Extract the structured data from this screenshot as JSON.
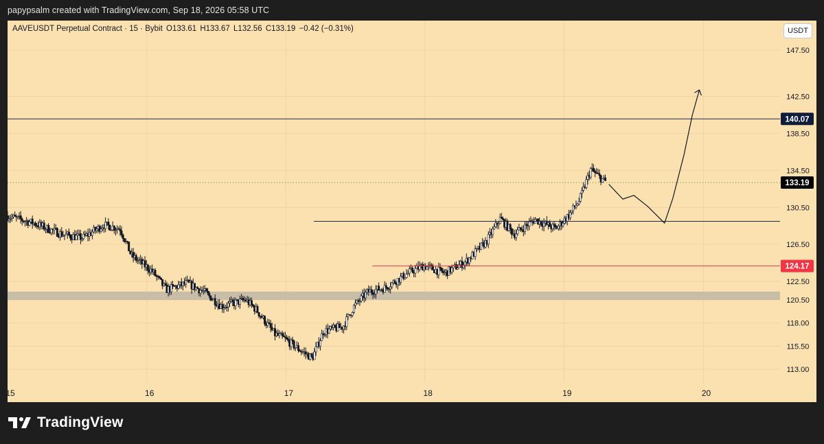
{
  "credit_text": "papypsalm created with TradingView.com, Sep 18, 2026 05:58 UTC",
  "legend": {
    "symbol": "AAVEUSDT Perpetual Contract · 15 · Bybit",
    "open": "O133.61",
    "high": "H133.67",
    "low": "L132.56",
    "close": "C133.19",
    "change": "−0.42 (−0.31%)"
  },
  "currency_unit": "USDT",
  "brand": "TradingView",
  "colors": {
    "background": "#fbe0b0",
    "candle": "#131722",
    "resistance": "#1c2a4a",
    "support_red": "#f23645",
    "zone": "#c8bea8"
  },
  "chart_data": {
    "type": "candlestick",
    "title": "",
    "xlabel": "",
    "ylabel": "",
    "ylim": [
      111.6,
      150.7
    ],
    "y_ticks": [
      113.0,
      115.5,
      118.0,
      120.5,
      122.5,
      126.5,
      130.5,
      134.5,
      138.5,
      142.5,
      147.5
    ],
    "y_tick_labels": [
      "113.00",
      "115.50",
      "118.00",
      "120.50",
      "122.50",
      "126.50",
      "130.50",
      "134.50",
      "138.50",
      "142.50",
      "147.50"
    ],
    "x_range": [
      15.0,
      20.55
    ],
    "x_ticks": [
      15,
      16,
      17,
      18,
      19,
      20
    ],
    "x_tick_labels": [
      "15",
      "16",
      "17",
      "18",
      "19",
      "20"
    ],
    "path": [
      [
        15.0,
        129.6
      ],
      [
        15.2,
        128.8
      ],
      [
        15.4,
        127.6
      ],
      [
        15.55,
        127.2
      ],
      [
        15.7,
        128.6
      ],
      [
        15.82,
        128.2
      ],
      [
        15.9,
        125.3
      ],
      [
        16.05,
        123.6
      ],
      [
        16.15,
        121.6
      ],
      [
        16.3,
        122.3
      ],
      [
        16.42,
        121.4
      ],
      [
        16.55,
        119.8
      ],
      [
        16.72,
        120.5
      ],
      [
        16.8,
        119.4
      ],
      [
        16.93,
        116.8
      ],
      [
        17.0,
        116.3
      ],
      [
        17.1,
        115.2
      ],
      [
        17.2,
        114.2
      ],
      [
        17.28,
        117.1
      ],
      [
        17.42,
        117.6
      ],
      [
        17.5,
        119.8
      ],
      [
        17.6,
        121.4
      ],
      [
        17.72,
        121.8
      ],
      [
        17.9,
        123.5
      ],
      [
        18.0,
        124.2
      ],
      [
        18.15,
        123.4
      ],
      [
        18.3,
        124.6
      ],
      [
        18.45,
        126.8
      ],
      [
        18.55,
        129.3
      ],
      [
        18.65,
        127.6
      ],
      [
        18.8,
        129.2
      ],
      [
        18.95,
        128.2
      ],
      [
        19.05,
        129.8
      ],
      [
        19.12,
        131.3
      ],
      [
        19.2,
        134.6
      ],
      [
        19.3,
        133.3
      ]
    ],
    "last_price": {
      "value": 133.19,
      "label": "133.19"
    },
    "levels": [
      {
        "name": "resistance",
        "value": 140.07,
        "label": "140.07"
      },
      {
        "name": "mid",
        "value": 129.0
      },
      {
        "name": "support",
        "value": 124.17,
        "label": "124.17"
      }
    ],
    "zone": [
      120.5,
      121.4
    ],
    "projection": [
      [
        19.32,
        133.0
      ],
      [
        19.42,
        131.4
      ],
      [
        19.5,
        131.8
      ],
      [
        19.6,
        130.6
      ],
      [
        19.68,
        129.4
      ],
      [
        19.72,
        128.8
      ],
      [
        19.78,
        131.5
      ],
      [
        19.86,
        136.2
      ],
      [
        19.92,
        140.5
      ],
      [
        19.97,
        143.2
      ]
    ],
    "legend": "none",
    "grid": true
  }
}
